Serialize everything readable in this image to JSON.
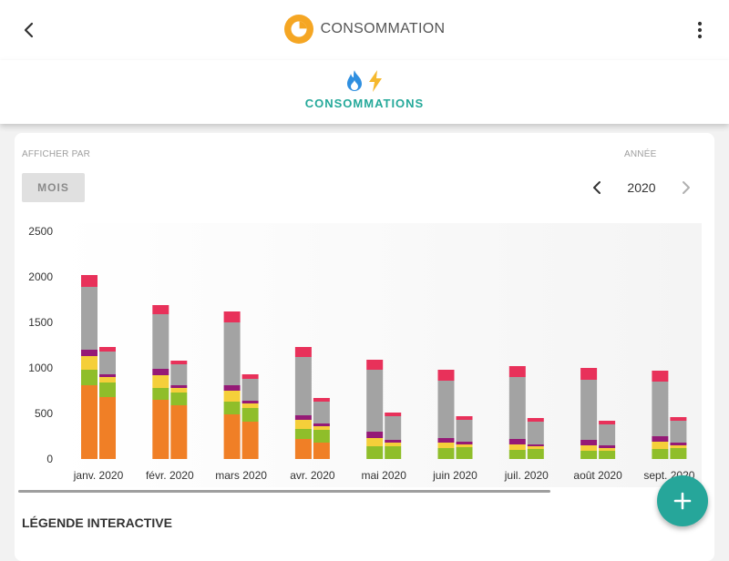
{
  "header": {
    "title": "CONSOMMATION",
    "icons": {
      "back": "arrow-left-icon",
      "title": "pie-chart-icon",
      "menu": "more-vert-icon"
    },
    "accent_color": "#f5a623"
  },
  "tabs": [
    {
      "label": "CONSOMMATIONS",
      "icons": [
        "flame-icon",
        "bolt-icon"
      ],
      "active": true
    }
  ],
  "filters": {
    "afficher_par_label": "AFFICHER PAR",
    "mois_button": "MOIS",
    "annee_label": "ANNÉE",
    "year": "2020"
  },
  "legend_title": "LÉGENDE INTERACTIVE",
  "fab_icon": "plus-icon",
  "colors": {
    "primary": "#26a69a",
    "orange": "#f07f26",
    "lime": "#8fbe2a",
    "yellow": "#f5cf3a",
    "purple": "#951a76",
    "grey": "#a3a3a3",
    "red": "#e8315a"
  },
  "chart_data": {
    "type": "bar",
    "stacked": true,
    "grouped": true,
    "categories": [
      "janv. 2020",
      "févr. 2020",
      "mars 2020",
      "avr. 2020",
      "mai 2020",
      "juin 2020",
      "juil. 2020",
      "août 2020",
      "sept. 2020"
    ],
    "y_ticks": [
      0,
      500,
      1000,
      1500,
      2000,
      2500
    ],
    "ylim": [
      0,
      2500
    ],
    "grid": false,
    "legend": "none",
    "groups": [
      [
        {
          "orange": 810,
          "lime": 170,
          "yellow": 150,
          "purple": 70,
          "grey": 690,
          "red": 130
        },
        {
          "orange": 680,
          "lime": 160,
          "yellow": 60,
          "purple": 30,
          "grey": 250,
          "red": 50
        }
      ],
      [
        {
          "orange": 650,
          "lime": 130,
          "yellow": 140,
          "purple": 70,
          "grey": 600,
          "red": 100
        },
        {
          "orange": 590,
          "lime": 140,
          "yellow": 50,
          "purple": 30,
          "grey": 230,
          "red": 40
        }
      ],
      [
        {
          "orange": 490,
          "lime": 140,
          "yellow": 120,
          "purple": 60,
          "grey": 690,
          "red": 120
        },
        {
          "orange": 410,
          "lime": 150,
          "yellow": 50,
          "purple": 30,
          "grey": 240,
          "red": 50
        }
      ],
      [
        {
          "orange": 220,
          "lime": 110,
          "yellow": 100,
          "purple": 50,
          "grey": 640,
          "red": 110
        },
        {
          "orange": 180,
          "lime": 140,
          "yellow": 40,
          "purple": 30,
          "grey": 240,
          "red": 40
        }
      ],
      [
        {
          "orange": 0,
          "lime": 140,
          "yellow": 90,
          "purple": 70,
          "grey": 680,
          "red": 110
        },
        {
          "orange": 0,
          "lime": 140,
          "yellow": 40,
          "purple": 30,
          "grey": 260,
          "red": 40
        }
      ],
      [
        {
          "orange": 0,
          "lime": 120,
          "yellow": 60,
          "purple": 50,
          "grey": 630,
          "red": 120
        },
        {
          "orange": 0,
          "lime": 130,
          "yellow": 30,
          "purple": 30,
          "grey": 240,
          "red": 40
        }
      ],
      [
        {
          "orange": 0,
          "lime": 100,
          "yellow": 60,
          "purple": 60,
          "grey": 680,
          "red": 120
        },
        {
          "orange": 0,
          "lime": 110,
          "yellow": 30,
          "purple": 20,
          "grey": 250,
          "red": 40
        }
      ],
      [
        {
          "orange": 0,
          "lime": 90,
          "yellow": 60,
          "purple": 60,
          "grey": 660,
          "red": 130
        },
        {
          "orange": 0,
          "lime": 90,
          "yellow": 30,
          "purple": 30,
          "grey": 230,
          "red": 40
        }
      ],
      [
        {
          "orange": 0,
          "lime": 110,
          "yellow": 80,
          "purple": 60,
          "grey": 600,
          "red": 120
        },
        {
          "orange": 0,
          "lime": 120,
          "yellow": 30,
          "purple": 30,
          "grey": 240,
          "red": 40
        }
      ]
    ]
  }
}
